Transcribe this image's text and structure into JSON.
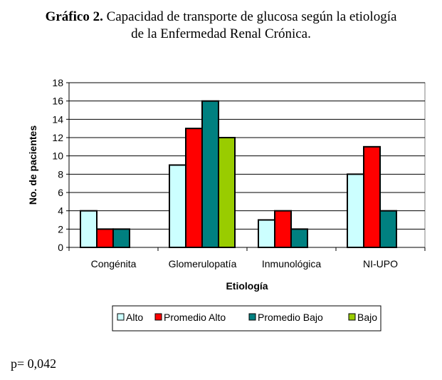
{
  "chart_data": {
    "type": "bar",
    "title_bold": "Gráfico 2.",
    "title": "Capacidad de transporte de glucosa según la etiología",
    "title_line2": "de  la Enfermedad Renal Crónica.",
    "xlabel": "Etiología",
    "ylabel": "No. de pacientes",
    "ylim": [
      0,
      18
    ],
    "yticks": [
      0,
      2,
      4,
      6,
      8,
      10,
      12,
      14,
      16,
      18
    ],
    "grid": true,
    "legend_position": "bottom",
    "categories": [
      "Congénita",
      "Glomerulopatía",
      "Inmunológica",
      "NI-UPO"
    ],
    "series": [
      {
        "name": "Alto",
        "color": "#CCFFFF",
        "values": [
          4,
          9,
          3,
          8
        ]
      },
      {
        "name": "Promedio Alto",
        "color": "#FF0000",
        "values": [
          2,
          13,
          4,
          11
        ]
      },
      {
        "name": "Promedio Bajo",
        "color": "#008080",
        "values": [
          2,
          16,
          2,
          4
        ]
      },
      {
        "name": "Bajo",
        "color": "#99CC00",
        "values": [
          0,
          12,
          0,
          0
        ]
      }
    ]
  },
  "footnote": "p= 0,042"
}
